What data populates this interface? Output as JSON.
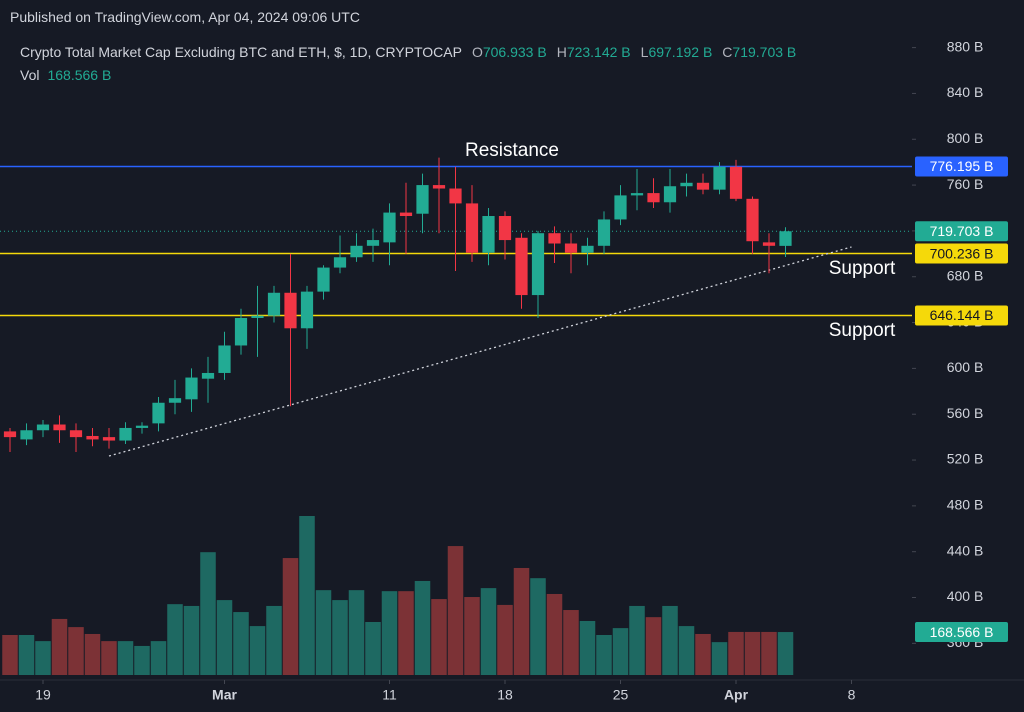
{
  "header": "Published on TradingView.com, Apr 04, 2024 09:06 UTC",
  "chart_data": {
    "type": "candlestick",
    "title": "Crypto Total Market Cap Excluding BTC and ETH, $, 1D, CRYPTOCAP",
    "legend_keys": [
      "O",
      "H",
      "L",
      "C"
    ],
    "legend_value_labels": [
      "706.933 B",
      "723.142 B",
      "697.192 B",
      "719.703 B"
    ],
    "x": [
      "2024-02-17",
      "2024-02-18",
      "2024-02-19",
      "2024-02-20",
      "2024-02-21",
      "2024-02-22",
      "2024-02-23",
      "2024-02-24",
      "2024-02-25",
      "2024-02-26",
      "2024-02-27",
      "2024-02-28",
      "2024-02-29",
      "2024-03-01",
      "2024-03-02",
      "2024-03-03",
      "2024-03-04",
      "2024-03-05",
      "2024-03-06",
      "2024-03-07",
      "2024-03-08",
      "2024-03-09",
      "2024-03-10",
      "2024-03-11",
      "2024-03-12",
      "2024-03-13",
      "2024-03-14",
      "2024-03-15",
      "2024-03-16",
      "2024-03-17",
      "2024-03-18",
      "2024-03-19",
      "2024-03-20",
      "2024-03-21",
      "2024-03-22",
      "2024-03-23",
      "2024-03-24",
      "2024-03-25",
      "2024-03-26",
      "2024-03-27",
      "2024-03-28",
      "2024-03-29",
      "2024-03-30",
      "2024-03-31",
      "2024-04-01",
      "2024-04-02",
      "2024-04-03",
      "2024-04-04"
    ],
    "open": [
      545,
      538,
      546,
      551,
      546,
      541,
      540,
      537,
      548,
      552,
      570,
      573,
      591,
      596,
      620,
      644,
      646,
      666,
      635,
      667,
      688,
      697,
      707,
      710,
      736,
      735,
      760,
      757,
      744,
      701,
      733,
      714,
      664,
      718,
      709,
      701,
      707,
      730,
      751,
      753,
      745,
      759,
      762,
      756,
      776,
      748,
      710,
      706.933
    ],
    "high": [
      548,
      552,
      555,
      559,
      552,
      548,
      548,
      553,
      553,
      575,
      590,
      600,
      610,
      632,
      652,
      672,
      672,
      700,
      672,
      690,
      716,
      718,
      722,
      744,
      762,
      770,
      784,
      776,
      760,
      740,
      737,
      718,
      720,
      724,
      718,
      714,
      737,
      760,
      774,
      766,
      774,
      770,
      770,
      780,
      782,
      750,
      718,
      723.142
    ],
    "low": [
      527,
      533,
      540,
      535,
      527,
      532,
      530,
      534,
      543,
      545,
      560,
      562,
      570,
      590,
      612,
      610,
      640,
      567,
      617,
      660,
      683,
      693,
      693,
      690,
      700,
      718,
      718,
      685,
      693,
      690,
      695,
      652,
      644,
      692,
      683,
      690,
      700,
      725,
      738,
      740,
      736,
      750,
      752,
      752,
      746,
      700,
      683,
      697.192
    ],
    "close": [
      540,
      546,
      551,
      546,
      540,
      538,
      537,
      548,
      550,
      570,
      574,
      592,
      596,
      620,
      644,
      646,
      666,
      635,
      667,
      688,
      697,
      707,
      712,
      736,
      733,
      760,
      757,
      744,
      701,
      733,
      712,
      664,
      718,
      709,
      701,
      707,
      730,
      751,
      753,
      745,
      759,
      762,
      756,
      776,
      748,
      711,
      707,
      719.703
    ],
    "up_color": "#22ab94",
    "down_color": "#f23645",
    "volume": {
      "name": "Vol",
      "values": [
        157,
        157,
        133,
        220,
        188,
        161,
        133,
        133,
        114,
        133,
        278,
        271,
        482,
        294,
        247,
        192,
        271,
        459,
        624,
        333,
        294,
        333,
        208,
        329,
        329,
        369,
        298,
        506,
        306,
        341,
        275,
        420,
        380,
        318,
        255,
        212,
        157,
        184,
        271,
        227,
        271,
        192,
        161,
        129,
        169,
        169,
        169,
        168.566
      ],
      "value_label": "168.566 B",
      "up_color": "#1e6962",
      "down_color": "#7c3236",
      "label_color": "#22ab94"
    },
    "last_price_label": "719.703 B",
    "xlim": [
      "2024-02-16",
      "2024-04-12"
    ],
    "xticks": [
      {
        "value": "2024-02-19",
        "label": "19"
      },
      {
        "value": "2024-03-01",
        "label": "Mar"
      },
      {
        "value": "2024-03-11",
        "label": "11"
      },
      {
        "value": "2024-03-18",
        "label": "18"
      },
      {
        "value": "2024-03-25",
        "label": "25"
      },
      {
        "value": "2024-04-01",
        "label": "Apr"
      },
      {
        "value": "2024-04-08",
        "label": "8"
      }
    ],
    "ylim": [
      328,
      891
    ],
    "yticks": [
      {
        "value": 360,
        "label": "360 B"
      },
      {
        "value": 400,
        "label": "400 B"
      },
      {
        "value": 440,
        "label": "440 B"
      },
      {
        "value": 480,
        "label": "480 B"
      },
      {
        "value": 520,
        "label": "520 B"
      },
      {
        "value": 560,
        "label": "560 B"
      },
      {
        "value": 600,
        "label": "600 B"
      },
      {
        "value": 640,
        "label": "640 B"
      },
      {
        "value": 680,
        "label": "680 B"
      },
      {
        "value": 720,
        "label": "720 B"
      },
      {
        "value": 760,
        "label": "760 B"
      },
      {
        "value": 800,
        "label": "800 B"
      },
      {
        "value": 840,
        "label": "840 B"
      },
      {
        "value": 880,
        "label": "880 B"
      }
    ],
    "levels": [
      {
        "name": "Resistance",
        "value": 776.195,
        "value_label": "776.195 B",
        "color": "#2962ff"
      },
      {
        "name": "Support",
        "value": 700.236,
        "value_label": "700.236 B",
        "color": "#f5d90a"
      },
      {
        "name": "Support",
        "value": 646.144,
        "value_label": "646.144 B",
        "color": "#f5d90a"
      }
    ],
    "trendline": {
      "x": [
        "2024-02-23",
        "2024-04-08"
      ],
      "y": [
        523.5,
        706
      ]
    }
  }
}
